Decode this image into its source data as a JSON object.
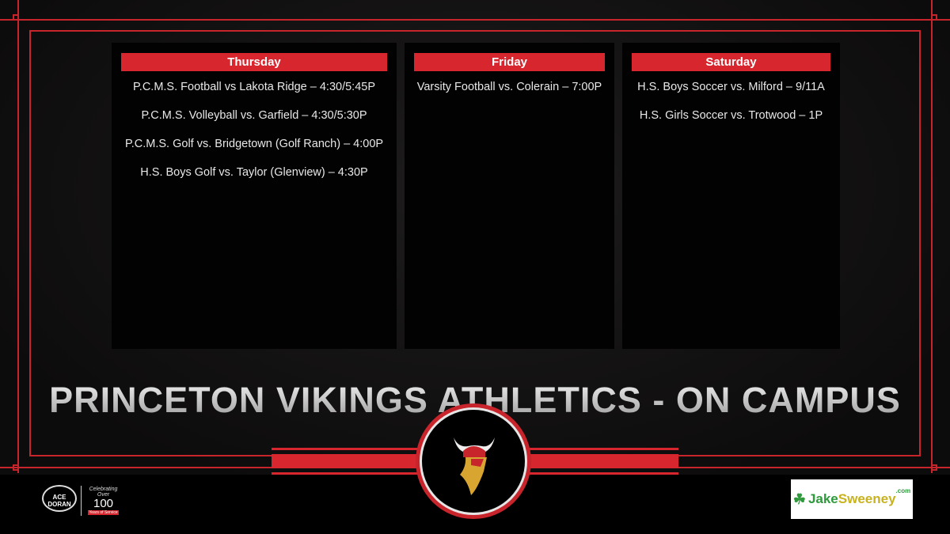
{
  "days": [
    {
      "label": "Thursday",
      "events": [
        "P.C.M.S. Football vs Lakota Ridge – 4:30/5:45P",
        "P.C.M.S. Volleyball vs. Garfield – 4:30/5:30P",
        "P.C.M.S. Golf vs. Bridgetown (Golf Ranch) – 4:00P",
        "H.S. Boys Golf vs. Taylor (Glenview) – 4:30P"
      ]
    },
    {
      "label": "Friday",
      "events": [
        "Varsity Football vs. Colerain – 7:00P"
      ]
    },
    {
      "label": "Saturday",
      "events": [
        "H.S. Boys Soccer vs. Milford – 9/11A",
        "H.S. Girls Soccer vs. Trotwood – 1P"
      ]
    }
  ],
  "title": "PRINCETON VIKINGS ATHLETICS - ON CAMPUS",
  "sponsors": {
    "left": {
      "name": "ACE DORAN",
      "tagline": "Celebrating Over",
      "years": "100",
      "ribbon": "Years of Service"
    },
    "right": {
      "name_a": "Jake",
      "name_b": "Sweeney",
      "suffix": ".com"
    }
  },
  "colors": {
    "accent": "#d7262e",
    "background": "#000000"
  }
}
